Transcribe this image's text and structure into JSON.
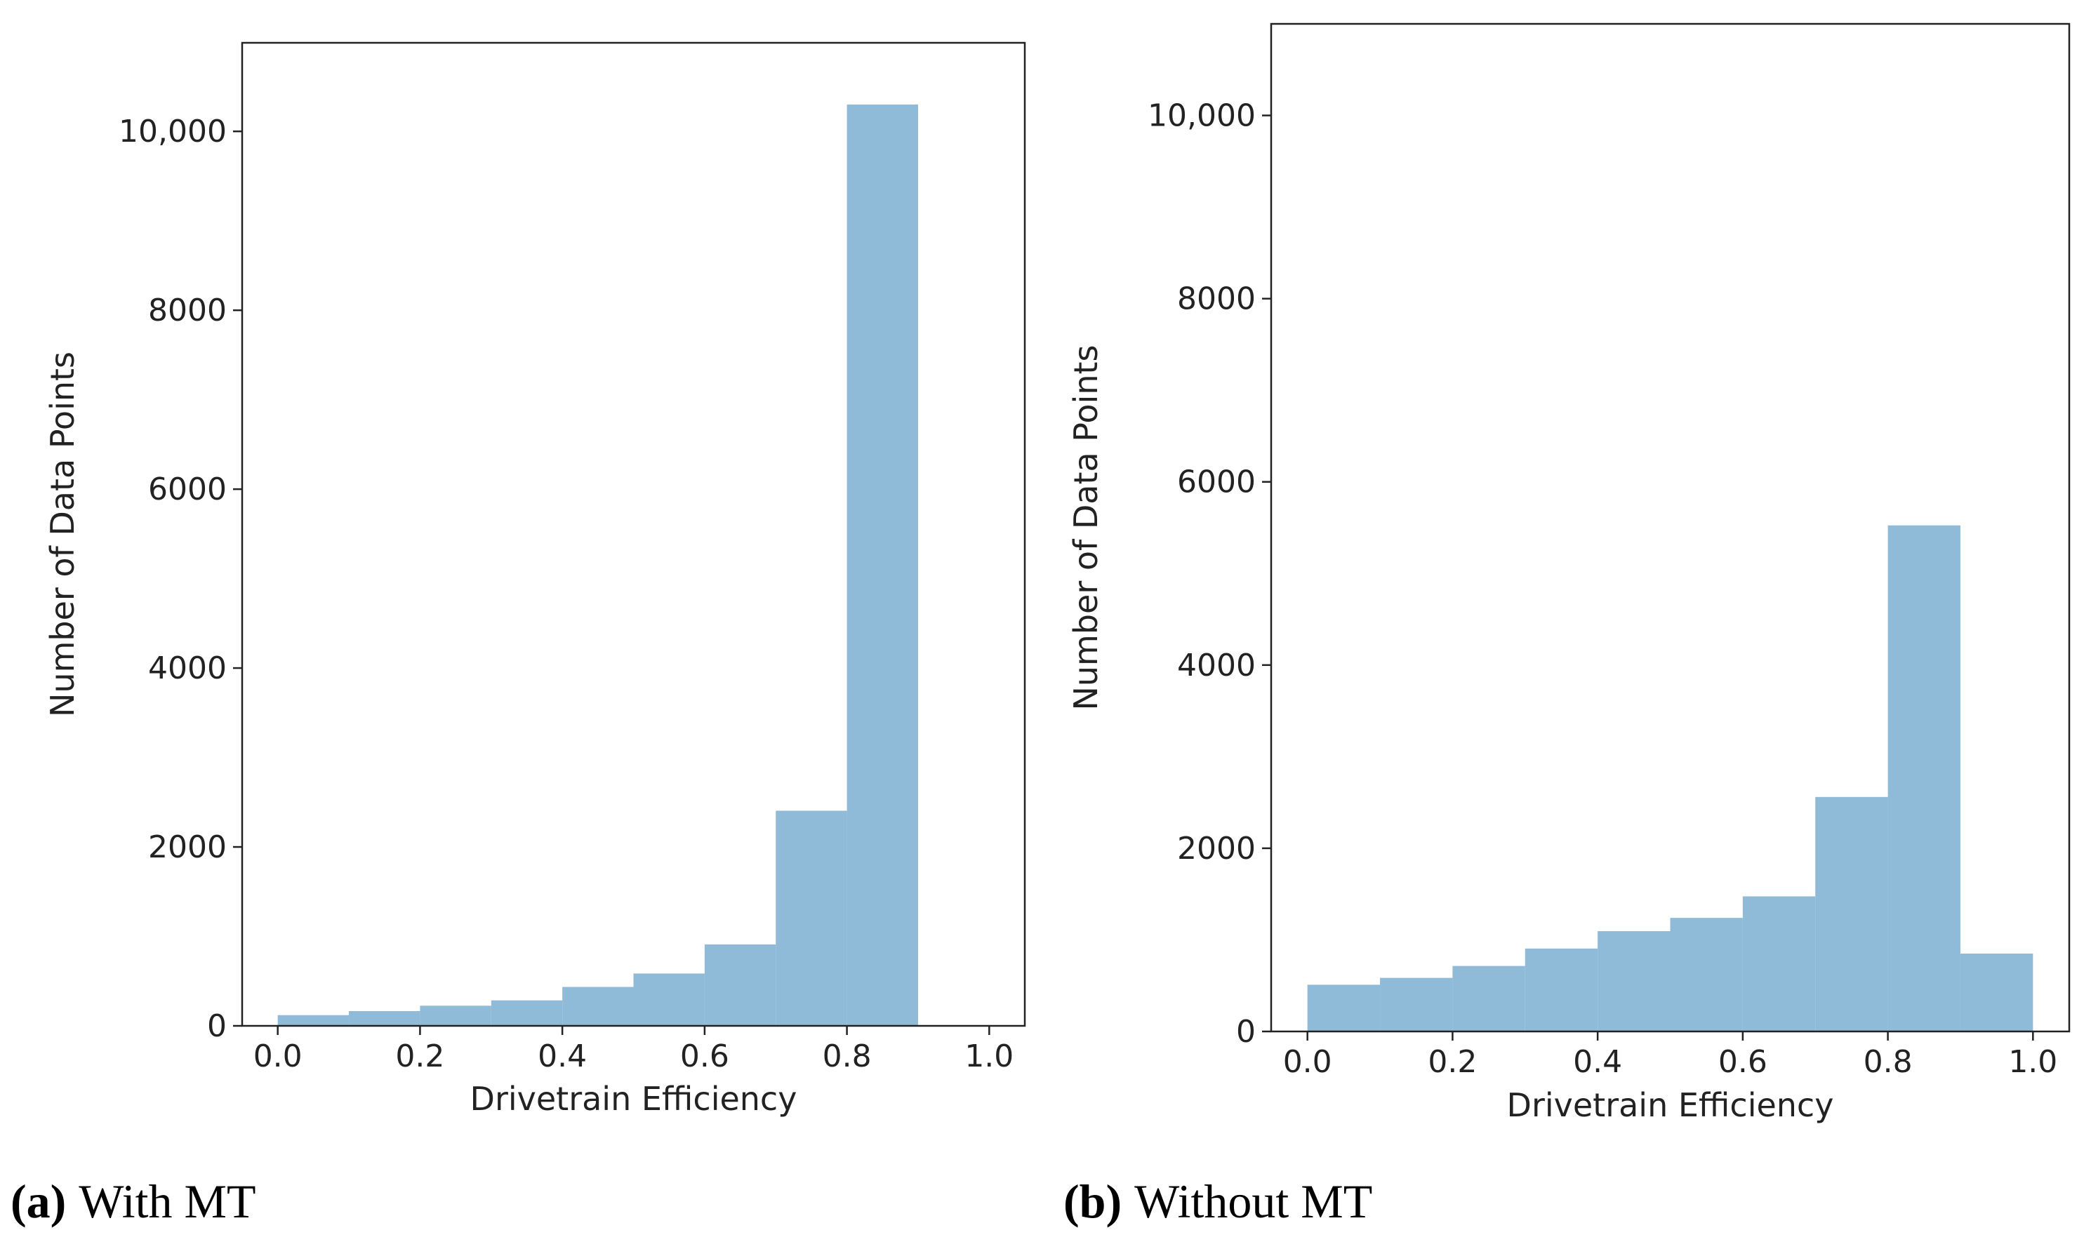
{
  "chart_data": [
    {
      "type": "histogram",
      "xlabel": "Drivetrain Efficiency",
      "ylabel": "Number of Data Points",
      "caption_label": "(a)",
      "caption": "With MT",
      "bins": [
        0.0,
        0.1,
        0.2,
        0.3,
        0.4,
        0.5,
        0.6,
        0.7,
        0.8,
        0.9,
        1.0
      ],
      "values": [
        120,
        165,
        225,
        285,
        435,
        585,
        910,
        2405,
        10300,
        0
      ],
      "color": "#8fbbd9",
      "xlim": [
        -0.05,
        1.05
      ],
      "ylim": [
        0,
        10990
      ],
      "xticks": [
        {
          "value": 0,
          "label": "0.0"
        },
        0.2,
        0.4,
        0.6,
        0.8,
        {
          "value": 1,
          "label": "1.0"
        }
      ],
      "yticks": [
        0,
        2000,
        4000,
        6000,
        8000,
        {
          "value": 10000,
          "label": "10,000"
        }
      ]
    },
    {
      "type": "histogram",
      "xlabel": "Drivetrain Efficiency",
      "ylabel": "Number of Data Points",
      "caption_label": "(b)",
      "caption": "Without MT",
      "bins": [
        0.0,
        0.1,
        0.2,
        0.3,
        0.4,
        0.5,
        0.6,
        0.7,
        0.8,
        0.9,
        1.0
      ],
      "values": [
        510,
        585,
        715,
        905,
        1095,
        1240,
        1475,
        2560,
        5525,
        850
      ],
      "color": "#8fbbd9",
      "xlim": [
        -0.05,
        1.05
      ],
      "ylim": [
        0,
        11000
      ],
      "xticks": [
        {
          "value": 0,
          "label": "0.0"
        },
        0.2,
        0.4,
        0.6,
        0.8,
        {
          "value": 1,
          "label": "1.0"
        }
      ],
      "yticks": [
        0,
        2000,
        4000,
        6000,
        8000,
        {
          "value": 10000,
          "label": "10,000"
        }
      ]
    }
  ]
}
